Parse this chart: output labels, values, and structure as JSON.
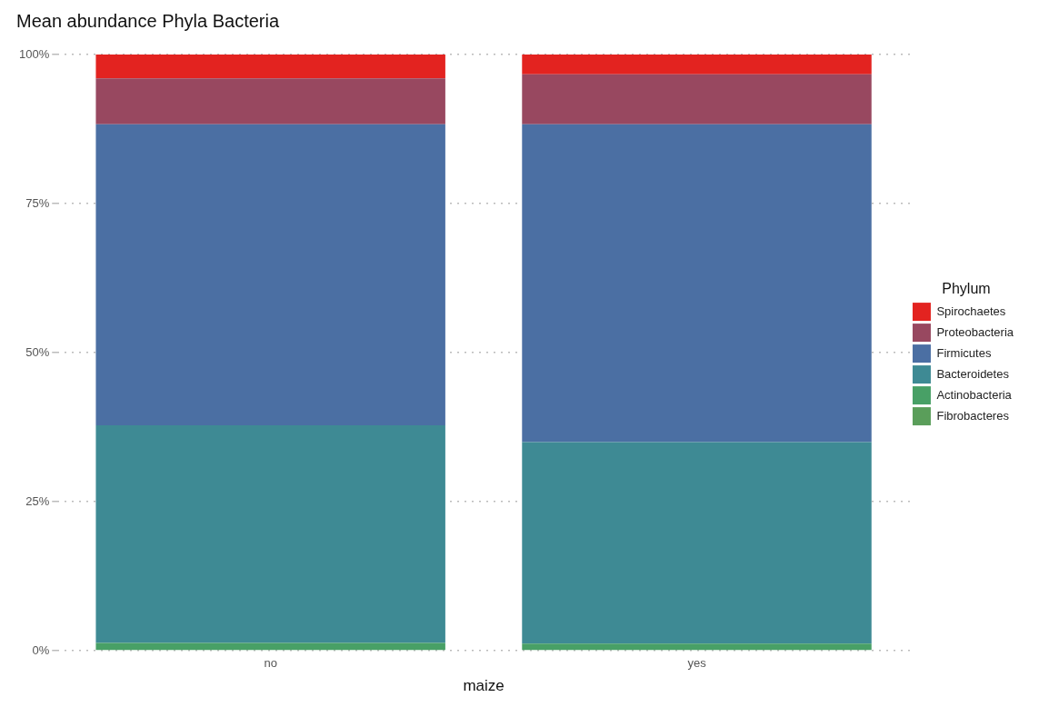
{
  "chart_data": {
    "type": "bar",
    "title": "Mean abundance Phyla Bacteria",
    "xlabel": "maize",
    "legend_title": "Phylum",
    "categories": [
      "no",
      "yes"
    ],
    "stacked": true,
    "series": [
      {
        "name": "Fibrobacteres",
        "color": "#5a9e5a",
        "values": [
          0.1,
          0.1
        ]
      },
      {
        "name": "Actinobacteria",
        "color": "#48a066",
        "values": [
          1.2,
          1.1
        ]
      },
      {
        "name": "Bacteroidetes",
        "color": "#3e8a94",
        "values": [
          36.5,
          33.8
        ]
      },
      {
        "name": "Firmicutes",
        "color": "#4b6fa3",
        "values": [
          50.5,
          53.3
        ]
      },
      {
        "name": "Proteobacteria",
        "color": "#984860",
        "values": [
          7.7,
          8.4
        ]
      },
      {
        "name": "Spirochaetes",
        "color": "#e32320",
        "values": [
          4.0,
          3.3
        ]
      }
    ],
    "ylim": [
      0,
      100
    ],
    "yticks": [
      {
        "value": 0,
        "label": "0%"
      },
      {
        "value": 25,
        "label": "25%"
      },
      {
        "value": 50,
        "label": "50%"
      },
      {
        "value": 75,
        "label": "75%"
      },
      {
        "value": 100,
        "label": "100%"
      }
    ],
    "grid": "y",
    "legend": "right"
  }
}
